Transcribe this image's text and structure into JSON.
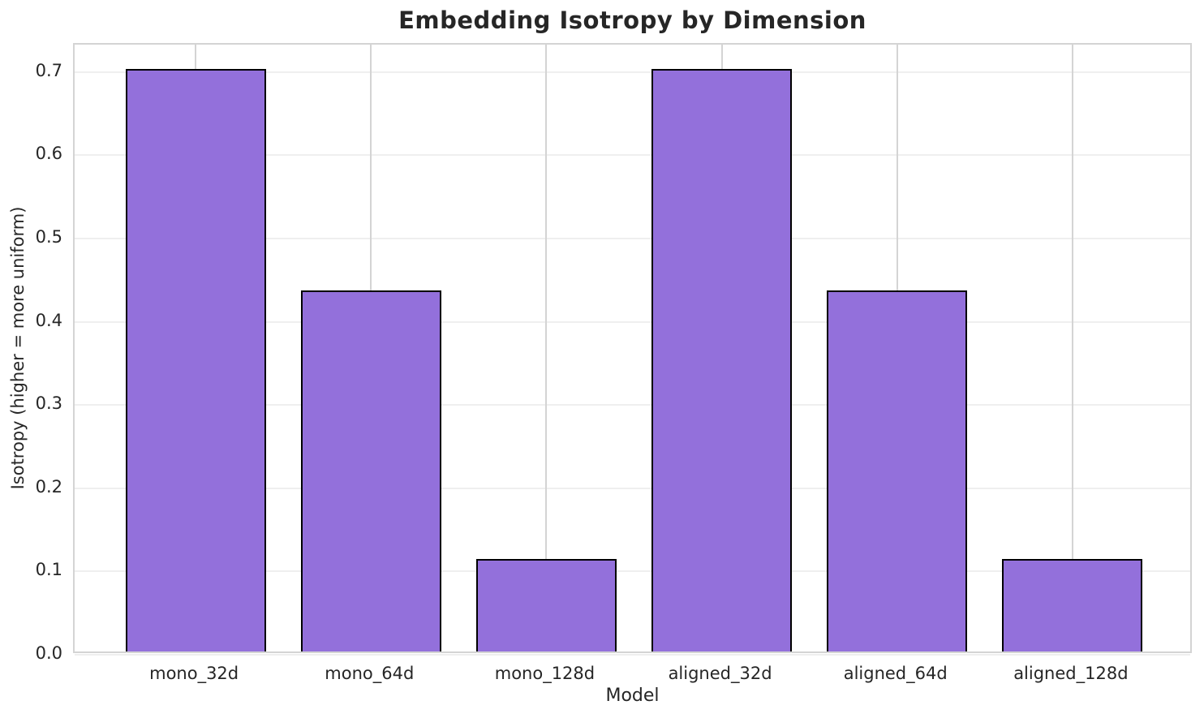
{
  "chart_data": {
    "type": "bar",
    "title": "Embedding Isotropy by Dimension",
    "xlabel": "Model",
    "ylabel": "Isotropy (higher = more uniform)",
    "categories": [
      "mono_32d",
      "mono_64d",
      "mono_128d",
      "aligned_32d",
      "aligned_64d",
      "aligned_128d"
    ],
    "values": [
      0.7,
      0.434,
      0.111,
      0.7,
      0.434,
      0.111
    ],
    "yticks": [
      0.0,
      0.1,
      0.2,
      0.3,
      0.4,
      0.5,
      0.6,
      0.7
    ],
    "ylim": [
      0,
      0.733
    ],
    "xlim": [
      -0.69,
      5.69
    ],
    "bar_width": 0.8,
    "grid": true,
    "legend": "none",
    "colors": {
      "bar_fill": "#9370DB",
      "bar_edge": "#000000",
      "grid_horizontal": "#efefef",
      "grid_vertical": "#d4d4d4",
      "spine": "#d4d4d4",
      "text": "#262626",
      "background": "#ffffff"
    }
  }
}
